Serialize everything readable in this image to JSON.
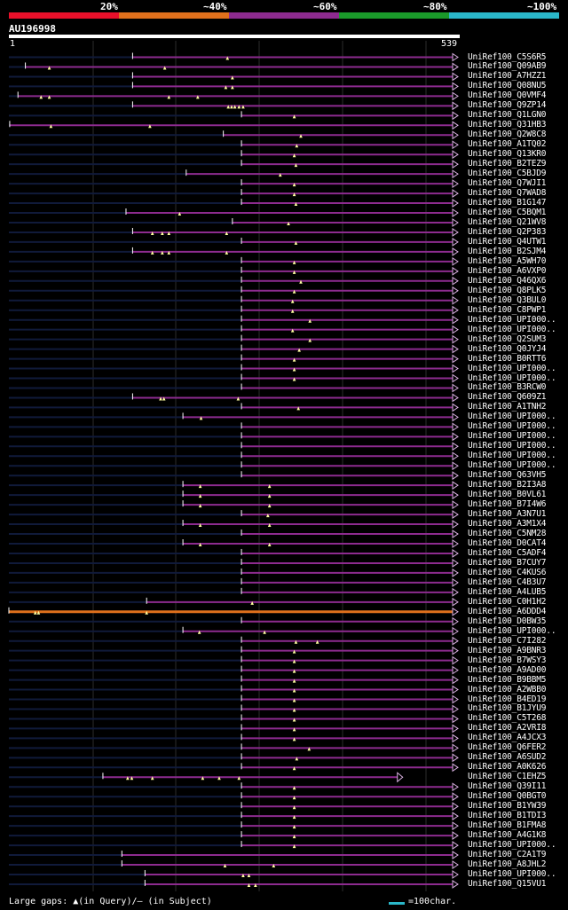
{
  "chart_data": {
    "type": "alignment-map",
    "query_id": "AU196998",
    "query_length": 539,
    "axis": {
      "start_label": "1",
      "end_label": "539",
      "range": [
        1,
        539
      ]
    },
    "identity_legend": [
      {
        "label": "20%",
        "color": "#e8102a"
      },
      {
        "label": "~40%",
        "color": "#e0701c"
      },
      {
        "label": "~60%",
        "color": "#8d2b8f"
      },
      {
        "label": "~80%",
        "color": "#1a9a2a"
      },
      {
        "label": "~100%",
        "color": "#2ab7c9"
      }
    ],
    "hits": [
      {
        "id": "UniRef100_C5S6R5",
        "start": 151,
        "end": 539,
        "gaps": [
          266
        ]
      },
      {
        "id": "UniRef100_Q09AB9",
        "start": 21,
        "end": 539,
        "gaps": [
          50,
          190
        ]
      },
      {
        "id": "UniRef100_A7HZZ1",
        "start": 151,
        "end": 539,
        "gaps": [
          272
        ]
      },
      {
        "id": "UniRef100_Q08NU5",
        "start": 151,
        "end": 539,
        "gaps": [
          264,
          272
        ]
      },
      {
        "id": "UniRef100_Q0VMF4",
        "start": 12,
        "end": 539,
        "gaps": [
          40,
          50,
          195,
          230
        ]
      },
      {
        "id": "UniRef100_Q9ZP14",
        "start": 151,
        "end": 539,
        "gaps": [
          267,
          271,
          275,
          280,
          285
        ]
      },
      {
        "id": "UniRef100_Q1LGN0",
        "start": 283,
        "end": 539,
        "gaps": [
          347
        ]
      },
      {
        "id": "UniRef100_Q31HB3",
        "start": 2,
        "end": 539,
        "gaps": [
          52,
          172
        ]
      },
      {
        "id": "UniRef100_Q2W8C8",
        "start": 261,
        "end": 539,
        "gaps": [
          355
        ]
      },
      {
        "id": "UniRef100_A1TQ02",
        "start": 283,
        "end": 539,
        "gaps": [
          350
        ]
      },
      {
        "id": "UniRef100_Q13KR0",
        "start": 283,
        "end": 539,
        "gaps": [
          347
        ]
      },
      {
        "id": "UniRef100_B2TEZ9",
        "start": 283,
        "end": 539,
        "gaps": [
          349
        ]
      },
      {
        "id": "UniRef100_C5BJD9",
        "start": 216,
        "end": 539,
        "gaps": [
          330
        ]
      },
      {
        "id": "UniRef100_Q7WJI1",
        "start": 283,
        "end": 539,
        "gaps": [
          347
        ]
      },
      {
        "id": "UniRef100_Q7WAD8",
        "start": 283,
        "end": 539,
        "gaps": [
          347
        ]
      },
      {
        "id": "UniRef100_B1G147",
        "start": 283,
        "end": 539,
        "gaps": [
          349
        ]
      },
      {
        "id": "UniRef100_C5BQM1",
        "start": 143,
        "end": 539,
        "gaps": [
          208
        ]
      },
      {
        "id": "UniRef100_Q21WV8",
        "start": 272,
        "end": 539,
        "gaps": [
          340
        ]
      },
      {
        "id": "UniRef100_Q2P383",
        "start": 151,
        "end": 539,
        "gaps": [
          175,
          187,
          195,
          265
        ]
      },
      {
        "id": "UniRef100_Q4UTW1",
        "start": 283,
        "end": 539,
        "gaps": [
          349
        ]
      },
      {
        "id": "UniRef100_B2SJM4",
        "start": 151,
        "end": 539,
        "gaps": [
          175,
          187,
          195,
          265
        ]
      },
      {
        "id": "UniRef100_A5WH70",
        "start": 283,
        "end": 539,
        "gaps": [
          347
        ]
      },
      {
        "id": "UniRef100_A6VXP0",
        "start": 283,
        "end": 539,
        "gaps": [
          347
        ]
      },
      {
        "id": "UniRef100_Q46QX6",
        "start": 283,
        "end": 539,
        "gaps": [
          355
        ]
      },
      {
        "id": "UniRef100_Q8PLK5",
        "start": 283,
        "end": 539,
        "gaps": [
          347
        ]
      },
      {
        "id": "UniRef100_Q3BUL0",
        "start": 283,
        "end": 539,
        "gaps": [
          345
        ]
      },
      {
        "id": "UniRef100_C8PWP1",
        "start": 283,
        "end": 539,
        "gaps": [
          345
        ]
      },
      {
        "id": "UniRef100_UPI000..",
        "start": 283,
        "end": 539,
        "gaps": [
          366
        ]
      },
      {
        "id": "UniRef100_UPI000..",
        "start": 283,
        "end": 539,
        "gaps": [
          345
        ]
      },
      {
        "id": "UniRef100_Q2SUM3",
        "start": 283,
        "end": 539,
        "gaps": [
          366
        ]
      },
      {
        "id": "UniRef100_Q0JYJ4",
        "start": 283,
        "end": 539,
        "gaps": [
          353
        ]
      },
      {
        "id": "UniRef100_B0RTT6",
        "start": 283,
        "end": 539,
        "gaps": [
          347
        ]
      },
      {
        "id": "UniRef100_UPI000..",
        "start": 283,
        "end": 539,
        "gaps": [
          347
        ]
      },
      {
        "id": "UniRef100_UPI000..",
        "start": 283,
        "end": 539,
        "gaps": [
          347
        ]
      },
      {
        "id": "UniRef100_B3RCW0",
        "start": 283,
        "end": 539,
        "gaps": []
      },
      {
        "id": "UniRef100_Q609Z1",
        "start": 151,
        "end": 539,
        "gaps": [
          185,
          189,
          279
        ]
      },
      {
        "id": "UniRef100_A1TNH2",
        "start": 283,
        "end": 539,
        "gaps": [
          352
        ]
      },
      {
        "id": "UniRef100_UPI000..",
        "start": 212,
        "end": 539,
        "gaps": [
          234
        ]
      },
      {
        "id": "UniRef100_UPI000..",
        "start": 283,
        "end": 539,
        "gaps": []
      },
      {
        "id": "UniRef100_UPI000..",
        "start": 283,
        "end": 539,
        "gaps": []
      },
      {
        "id": "UniRef100_UPI000..",
        "start": 283,
        "end": 539,
        "gaps": []
      },
      {
        "id": "UniRef100_UPI000..",
        "start": 283,
        "end": 539,
        "gaps": []
      },
      {
        "id": "UniRef100_UPI000..",
        "start": 283,
        "end": 539,
        "gaps": []
      },
      {
        "id": "UniRef100_Q63VH5",
        "start": 283,
        "end": 539,
        "gaps": []
      },
      {
        "id": "UniRef100_B2I3A8",
        "start": 212,
        "end": 539,
        "gaps": [
          233,
          317
        ]
      },
      {
        "id": "UniRef100_B0VL61",
        "start": 212,
        "end": 539,
        "gaps": [
          233,
          317
        ]
      },
      {
        "id": "UniRef100_B7I4W6",
        "start": 212,
        "end": 539,
        "gaps": [
          233,
          317
        ]
      },
      {
        "id": "UniRef100_A3N7U1",
        "start": 283,
        "end": 539,
        "gaps": [
          315
        ]
      },
      {
        "id": "UniRef100_A3M1X4",
        "start": 212,
        "end": 539,
        "gaps": [
          233,
          317
        ]
      },
      {
        "id": "UniRef100_C5NM28",
        "start": 283,
        "end": 539,
        "gaps": []
      },
      {
        "id": "UniRef100_D0CAT4",
        "start": 212,
        "end": 539,
        "gaps": [
          233,
          317
        ]
      },
      {
        "id": "UniRef100_C5ADF4",
        "start": 283,
        "end": 539,
        "gaps": []
      },
      {
        "id": "UniRef100_B7CUY7",
        "start": 283,
        "end": 539,
        "gaps": []
      },
      {
        "id": "UniRef100_C4KUS6",
        "start": 283,
        "end": 539,
        "gaps": []
      },
      {
        "id": "UniRef100_C4B3U7",
        "start": 283,
        "end": 539,
        "gaps": []
      },
      {
        "id": "UniRef100_A4LUB5",
        "start": 283,
        "end": 539,
        "gaps": []
      },
      {
        "id": "UniRef100_C0H1H2",
        "start": 168,
        "end": 539,
        "gaps": [
          296
        ]
      },
      {
        "id": "UniRef100_A6DDD4",
        "start": 1,
        "end": 539,
        "gaps": [
          33,
          37,
          168
        ],
        "highlight": true
      },
      {
        "id": "UniRef100_D0BW35",
        "start": 283,
        "end": 539,
        "gaps": []
      },
      {
        "id": "UniRef100_UPI000..",
        "start": 212,
        "end": 539,
        "gaps": [
          232,
          311
        ]
      },
      {
        "id": "UniRef100_C7I282",
        "start": 283,
        "end": 539,
        "gaps": [
          349,
          375
        ]
      },
      {
        "id": "UniRef100_A9BNR3",
        "start": 283,
        "end": 539,
        "gaps": [
          347
        ]
      },
      {
        "id": "UniRef100_B7WSY3",
        "start": 283,
        "end": 539,
        "gaps": [
          347
        ]
      },
      {
        "id": "UniRef100_A9AD00",
        "start": 283,
        "end": 539,
        "gaps": [
          347
        ]
      },
      {
        "id": "UniRef100_B9BBM5",
        "start": 283,
        "end": 539,
        "gaps": [
          347
        ]
      },
      {
        "id": "UniRef100_A2WBB0",
        "start": 283,
        "end": 539,
        "gaps": [
          347
        ]
      },
      {
        "id": "UniRef100_B4ED19",
        "start": 283,
        "end": 539,
        "gaps": [
          347
        ]
      },
      {
        "id": "UniRef100_B1JYU9",
        "start": 283,
        "end": 539,
        "gaps": [
          347
        ]
      },
      {
        "id": "UniRef100_C5T268",
        "start": 283,
        "end": 539,
        "gaps": [
          347
        ]
      },
      {
        "id": "UniRef100_A2VRI8",
        "start": 283,
        "end": 539,
        "gaps": [
          347
        ]
      },
      {
        "id": "UniRef100_A4JCX3",
        "start": 283,
        "end": 539,
        "gaps": [
          347
        ]
      },
      {
        "id": "UniRef100_Q6FER2",
        "start": 283,
        "end": 539,
        "gaps": [
          365
        ]
      },
      {
        "id": "UniRef100_A6SUD2",
        "start": 283,
        "end": 539,
        "gaps": [
          350
        ]
      },
      {
        "id": "UniRef100_A0K626",
        "start": 283,
        "end": 539,
        "gaps": [
          347
        ]
      },
      {
        "id": "UniRef100_C1EHZ5",
        "start": 115,
        "end": 472,
        "gaps": [
          145,
          150,
          175,
          236,
          256,
          280
        ],
        "truncated": true
      },
      {
        "id": "UniRef100_Q39I11",
        "start": 283,
        "end": 539,
        "gaps": [
          347
        ]
      },
      {
        "id": "UniRef100_Q0BGT0",
        "start": 283,
        "end": 539,
        "gaps": [
          347
        ]
      },
      {
        "id": "UniRef100_B1YW39",
        "start": 283,
        "end": 539,
        "gaps": [
          347
        ]
      },
      {
        "id": "UniRef100_B1TDI3",
        "start": 283,
        "end": 539,
        "gaps": [
          347
        ]
      },
      {
        "id": "UniRef100_B1FMA8",
        "start": 283,
        "end": 539,
        "gaps": [
          347
        ]
      },
      {
        "id": "UniRef100_A4G1K8",
        "start": 283,
        "end": 539,
        "gaps": [
          347
        ]
      },
      {
        "id": "UniRef100_UPI000..",
        "start": 283,
        "end": 539,
        "gaps": [
          347
        ]
      },
      {
        "id": "UniRef100_C2A1T9",
        "start": 138,
        "end": 539,
        "gaps": []
      },
      {
        "id": "UniRef100_A8JHL2",
        "start": 138,
        "end": 539,
        "gaps": [
          263,
          322
        ]
      },
      {
        "id": "UniRef100_UPI000..",
        "start": 166,
        "end": 539,
        "gaps": [
          285,
          292
        ]
      },
      {
        "id": "UniRef100_Q15VU1",
        "start": 166,
        "end": 539,
        "gaps": [
          292,
          300
        ]
      }
    ]
  },
  "footer": {
    "gap_note": "Large gaps: ▲(in Query)/– (in Subject)",
    "scale_note": "=100char."
  }
}
